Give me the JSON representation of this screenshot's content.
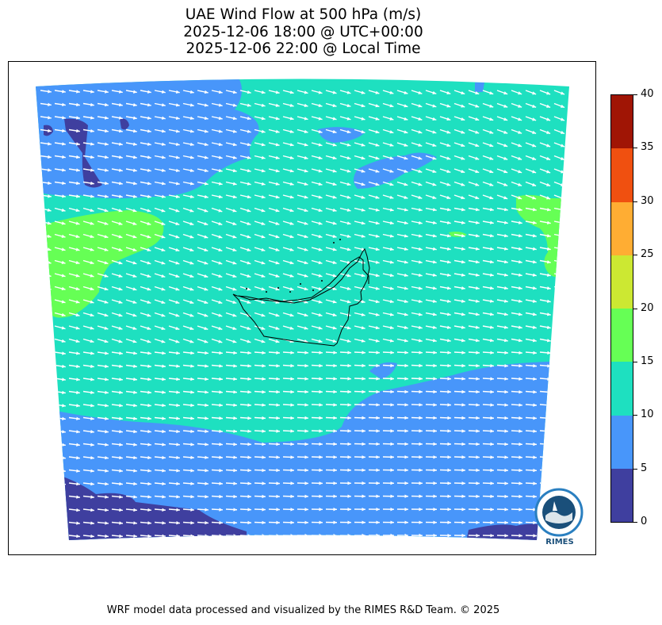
{
  "title": {
    "line1": "UAE Wind Flow at 500 hPa (m/s)",
    "line2": "2025-12-06 18:00 @ UTC+00:00",
    "line3": "2025-12-06 22:00 @ Local Time"
  },
  "footer": "WRF model data processed and visualized by the RIMES R&D Team. © 2025",
  "logo": {
    "text": "RIMES",
    "ring_text": "Regional Integrated Multi-Hazard Early Warning System"
  },
  "colorbar": {
    "unit": "m/s",
    "levels": [
      {
        "min": 0,
        "max": 5,
        "color": "#3f3f9f"
      },
      {
        "min": 5,
        "max": 10,
        "color": "#4896fa"
      },
      {
        "min": 10,
        "max": 15,
        "color": "#1ee0c0"
      },
      {
        "min": 15,
        "max": 20,
        "color": "#66ff55"
      },
      {
        "min": 20,
        "max": 25,
        "color": "#cce832"
      },
      {
        "min": 25,
        "max": 30,
        "color": "#ffad33"
      },
      {
        "min": 30,
        "max": 35,
        "color": "#f05010"
      },
      {
        "min": 35,
        "max": 40,
        "color": "#a01505"
      }
    ],
    "tick_labels": [
      "0",
      "5",
      "10",
      "15",
      "20",
      "25",
      "30",
      "35",
      "40"
    ]
  },
  "map": {
    "region": "UAE",
    "pressure_level": "500 hPa",
    "dominant_speed_band": "10-15",
    "wind_direction": "westerly",
    "arrow_color": "#ffffff",
    "boundary_color": "#000000"
  }
}
